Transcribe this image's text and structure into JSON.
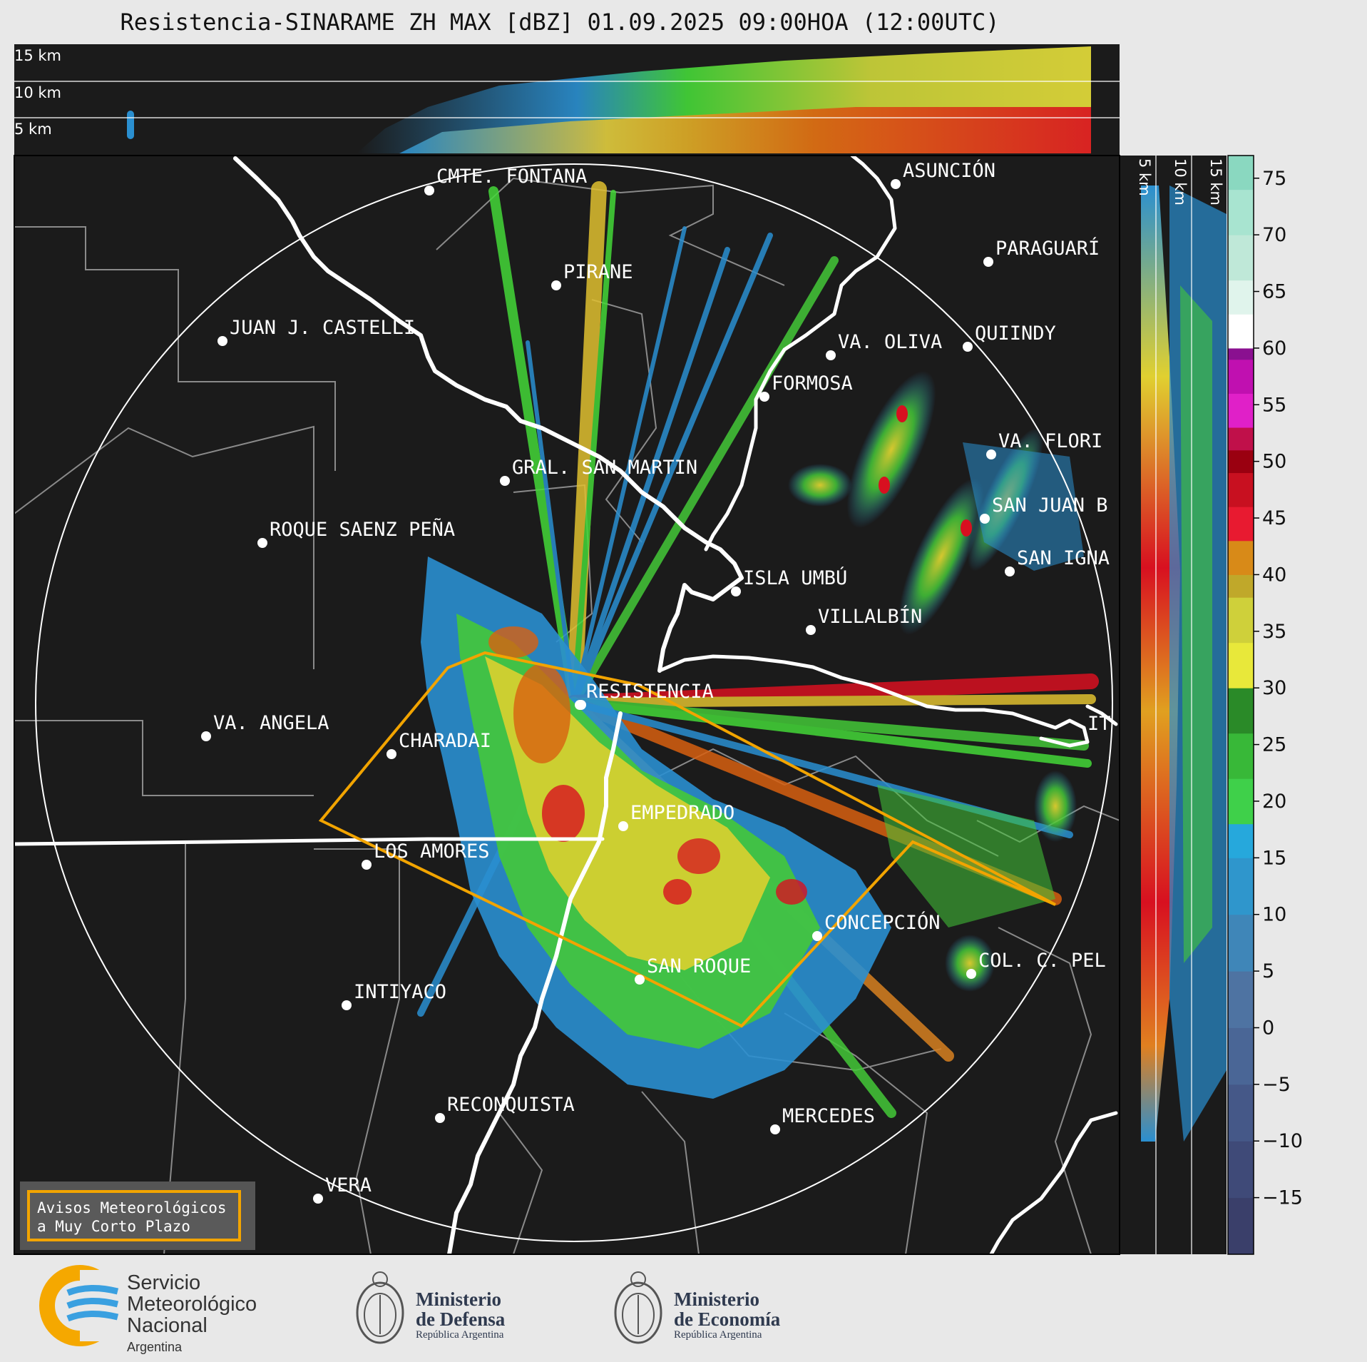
{
  "title": "Resistencia-SINARAME ZH MAX [dBZ] 01.09.2025 09:00HOA (12:00UTC)",
  "height_panel": {
    "top_labels": [
      "15 km",
      "10 km",
      "5 km"
    ],
    "side_labels": [
      "5 km",
      "10 km",
      "15 km"
    ]
  },
  "colorbar": {
    "ticks": [
      "75",
      "70",
      "65",
      "60",
      "55",
      "50",
      "45",
      "40",
      "35",
      "30",
      "25",
      "20",
      "15",
      "10",
      "5",
      "0",
      "−5",
      "−10",
      "−15"
    ]
  },
  "cities": [
    {
      "name": "CMTE. FONTANA"
    },
    {
      "name": "ASUNCIÓN"
    },
    {
      "name": "PARAGUARÍ"
    },
    {
      "name": "PIRANE"
    },
    {
      "name": "JUAN J. CASTELLI"
    },
    {
      "name": "VA. OLIVA"
    },
    {
      "name": "QUIINDY"
    },
    {
      "name": "FORMOSA"
    },
    {
      "name": "VA. FLORI"
    },
    {
      "name": "GRAL. SAN MARTIN"
    },
    {
      "name": "SAN JUAN B"
    },
    {
      "name": "ROQUE SAENZ PEÑA"
    },
    {
      "name": "SAN IGNA"
    },
    {
      "name": "ISLA UMBÚ"
    },
    {
      "name": "VILLALBÍN"
    },
    {
      "name": "RESISTENCIA"
    },
    {
      "name": "VA. ANGELA"
    },
    {
      "name": "CHARADAI"
    },
    {
      "name": "IT"
    },
    {
      "name": "EMPEDRADO"
    },
    {
      "name": "LOS AMORES"
    },
    {
      "name": "CONCEPCIÓN"
    },
    {
      "name": "SAN ROQUE"
    },
    {
      "name": "COL. C. PEL"
    },
    {
      "name": "INTIYACO"
    },
    {
      "name": "RECONQUISTA"
    },
    {
      "name": "MERCEDES"
    },
    {
      "name": "VERA"
    }
  ],
  "warning_box": {
    "line1": "Avisos Meteorológicos",
    "line2": "a Muy Corto Plazo"
  },
  "logos": {
    "smn": {
      "line1": "Servicio",
      "line2": "Meteorológico",
      "line3": "Nacional",
      "line4": "Argentina"
    },
    "defensa": {
      "line1": "Ministerio",
      "line2": "de Defensa",
      "line3": "República Argentina"
    },
    "economia": {
      "line1": "Ministerio",
      "line2": "de Economía",
      "line3": "República Argentina"
    }
  },
  "colors": {
    "background": "#1b1b1b",
    "warning": "#f2a400",
    "smn_orange": "#f5a800",
    "smn_blue": "#3aa0e0"
  }
}
